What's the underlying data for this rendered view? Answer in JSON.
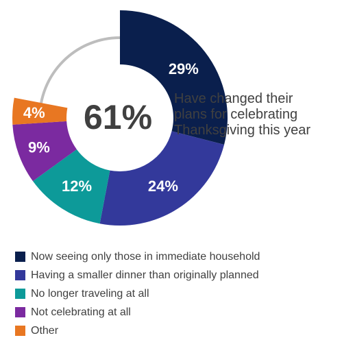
{
  "chart_data": {
    "type": "pie",
    "center_value": "61%",
    "center_text": [
      "Have changed their",
      "plans for celebrating",
      "Thanksgiving this year"
    ],
    "series": [
      {
        "name": "Now seeing only those in immediate household",
        "value": 29,
        "label": "29%",
        "color": "#0a1f4d"
      },
      {
        "name": "Having a smaller dinner than originally planned",
        "value": 24,
        "label": "24%",
        "color": "#33399b"
      },
      {
        "name": "No longer traveling at all",
        "value": 12,
        "label": "12%",
        "color": "#0d9a99"
      },
      {
        "name": "Not celebrating at all",
        "value": 9,
        "label": "9%",
        "color": "#7b2aa0"
      },
      {
        "name": "Other",
        "value": 4,
        "label": "4%",
        "color": "#e87722"
      }
    ],
    "remainder_color": "#bdbdbd",
    "legend_position": "bottom-left"
  }
}
